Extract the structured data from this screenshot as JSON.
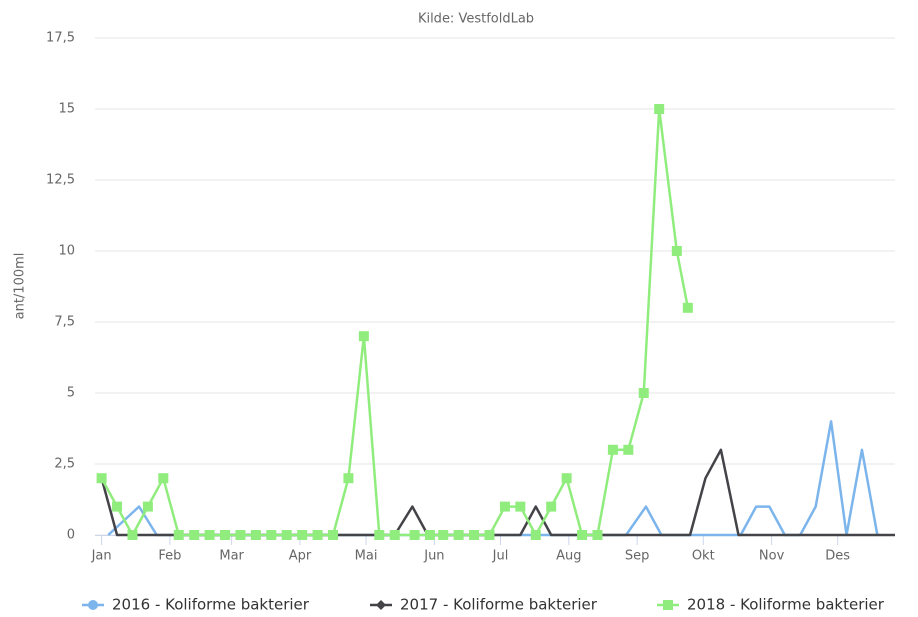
{
  "chart_data": {
    "type": "line",
    "title": "Kilde: VestfoldLab",
    "ylabel": "ant/100ml",
    "xlim": [
      -3,
      360
    ],
    "xticks": [
      {
        "value": 0,
        "label": "Jan"
      },
      {
        "value": 31,
        "label": "Feb"
      },
      {
        "value": 59,
        "label": "Mar"
      },
      {
        "value": 90,
        "label": "Apr"
      },
      {
        "value": 120,
        "label": "Mai"
      },
      {
        "value": 151,
        "label": "Jun"
      },
      {
        "value": 181,
        "label": "Jul"
      },
      {
        "value": 212,
        "label": "Aug"
      },
      {
        "value": 243,
        "label": "Sep"
      },
      {
        "value": 273,
        "label": "Okt"
      },
      {
        "value": 304,
        "label": "Nov"
      },
      {
        "value": 334,
        "label": "Des"
      }
    ],
    "ylim": [
      0,
      17.5
    ],
    "yticks": [
      0,
      {
        "value": 2.5,
        "label": "2,5"
      },
      5,
      {
        "value": 7.5,
        "label": "7,5"
      },
      10,
      {
        "value": 12.5,
        "label": "12,5"
      },
      15,
      {
        "value": 17.5,
        "label": "17,5"
      }
    ],
    "grid": true,
    "legend": "bottom",
    "series": [
      {
        "name": "2016 - Koliforme bakterier",
        "color": "#7cb5ec",
        "symbol": "circle",
        "markers": false,
        "x": [
          3,
          17,
          25,
          238,
          247,
          254,
          290,
          297,
          303,
          310,
          317,
          324,
          331,
          338,
          345,
          352
        ],
        "values": [
          0,
          1,
          0,
          0,
          1,
          0,
          0,
          1,
          1,
          0,
          0,
          1,
          4,
          0,
          3,
          0
        ]
      },
      {
        "name": "2017 - Koliforme bakterier",
        "color": "#434348",
        "symbol": "diamond",
        "markers": false,
        "x": [
          0,
          7,
          133,
          141,
          148,
          190,
          197,
          204,
          267,
          274,
          281,
          289,
          360
        ],
        "values": [
          2,
          0,
          0,
          1,
          0,
          0,
          1,
          0,
          0,
          2,
          3,
          0,
          0
        ]
      },
      {
        "name": "2018 - Koliforme bakterier",
        "color": "#90ed7d",
        "symbol": "square",
        "markers": true,
        "x": [
          0,
          7,
          14,
          21,
          28,
          35,
          42,
          49,
          56,
          63,
          70,
          77,
          84,
          91,
          98,
          105,
          112,
          119,
          126,
          133,
          142,
          149,
          155,
          162,
          169,
          176,
          183,
          190,
          197,
          204,
          211,
          218,
          225,
          232,
          239,
          246,
          253,
          261,
          266
        ],
        "values": [
          2,
          1,
          0,
          1,
          2,
          0,
          0,
          0,
          0,
          0,
          0,
          0,
          0,
          0,
          0,
          0,
          2,
          7,
          0,
          0,
          0,
          0,
          0,
          0,
          0,
          0,
          1,
          1,
          0,
          1,
          2,
          0,
          0,
          3,
          3,
          5,
          15,
          10,
          8
        ]
      }
    ]
  }
}
